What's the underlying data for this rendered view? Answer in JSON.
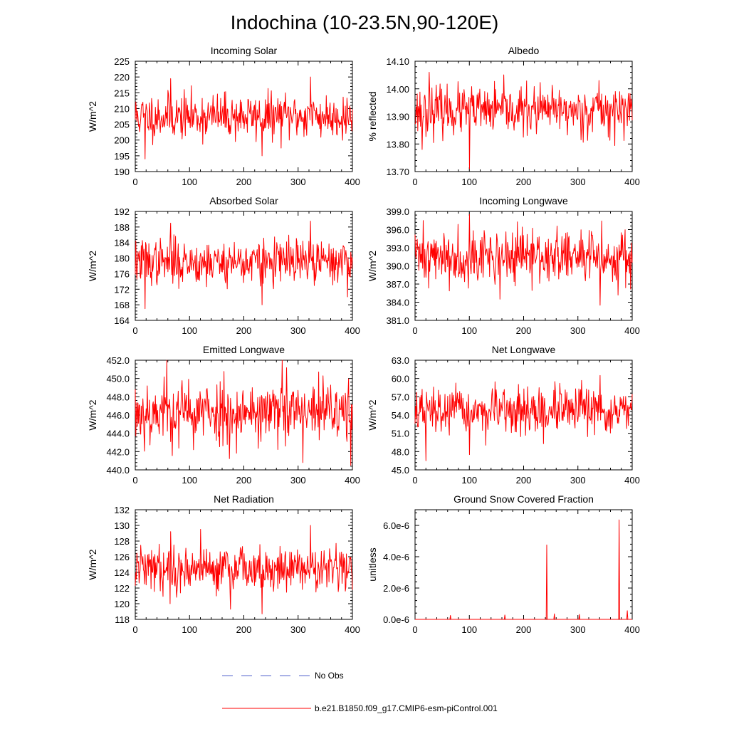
{
  "page_title": "Indochina (10-23.5N,90-120E)",
  "legend": {
    "obs_label": "No Obs",
    "model_label": "b.e21.B1850.f09_g17.CMIP6-esm-piControl.001",
    "obs_color": "#5566cc",
    "model_color": "#ff0000"
  },
  "chart_data": [
    {
      "type": "line",
      "title": "Incoming Solar",
      "ylabel": "W/m^2",
      "xlim": [
        0,
        400
      ],
      "ylim": [
        190,
        225
      ],
      "x_ticks": [
        "0",
        "100",
        "200",
        "300",
        "400"
      ],
      "y_ticks": [
        "190",
        "195",
        "200",
        "205",
        "210",
        "215",
        "220",
        "225"
      ],
      "series": [
        {
          "name": "b.e21.B1850.f09_g17.CMIP6-esm-piControl.001",
          "gen": {
            "n": 400,
            "seed": 11,
            "mean": 207.5,
            "amp": 4.2,
            "spikes": [
              [
                18,
                194
              ],
              [
                65,
                219.5
              ],
              [
                233,
                195
              ],
              [
                322,
                220
              ]
            ]
          }
        }
      ]
    },
    {
      "type": "line",
      "title": "Albedo",
      "ylabel": "% reflected",
      "xlim": [
        0,
        400
      ],
      "ylim": [
        13.7,
        14.1
      ],
      "x_ticks": [
        "0",
        "100",
        "200",
        "300",
        "400"
      ],
      "y_ticks": [
        "13.70",
        "13.80",
        "13.90",
        "14.00",
        "14.10"
      ],
      "series": [
        {
          "name": "b.e21.B1850.f09_g17.CMIP6-esm-piControl.001",
          "gen": {
            "n": 400,
            "seed": 23,
            "mean": 13.92,
            "amp": 0.05,
            "spikes": [
              [
                26,
                14.06
              ],
              [
                100,
                13.71
              ],
              [
                338,
                14.03
              ],
              [
                13,
                13.78
              ]
            ]
          }
        }
      ]
    },
    {
      "type": "line",
      "title": "Absorbed Solar",
      "ylabel": "W/m^2",
      "xlim": [
        0,
        400
      ],
      "ylim": [
        164,
        192
      ],
      "x_ticks": [
        "0",
        "100",
        "200",
        "300",
        "400"
      ],
      "y_ticks": [
        "164",
        "168",
        "172",
        "176",
        "180",
        "184",
        "188",
        "192"
      ],
      "series": [
        {
          "name": "b.e21.B1850.f09_g17.CMIP6-esm-piControl.001",
          "gen": {
            "n": 400,
            "seed": 37,
            "mean": 179.0,
            "amp": 3.4,
            "spikes": [
              [
                18,
                167
              ],
              [
                65,
                189
              ],
              [
                233,
                168
              ],
              [
                322,
                189.5
              ]
            ]
          }
        }
      ]
    },
    {
      "type": "line",
      "title": "Incoming Longwave",
      "ylabel": "W/m^2",
      "xlim": [
        0,
        400
      ],
      "ylim": [
        381,
        399
      ],
      "x_ticks": [
        "0",
        "100",
        "200",
        "300",
        "400"
      ],
      "y_ticks": [
        "381.0",
        "384.0",
        "387.0",
        "390.0",
        "393.0",
        "396.0",
        "399.0"
      ],
      "series": [
        {
          "name": "b.e21.B1850.f09_g17.CMIP6-esm-piControl.001",
          "gen": {
            "n": 400,
            "seed": 41,
            "mean": 391.5,
            "amp": 2.6,
            "spikes": [
              [
                100,
                398.5
              ],
              [
                156,
                384.5
              ],
              [
                340,
                383.5
              ],
              [
                15,
                397.5
              ]
            ]
          }
        }
      ]
    },
    {
      "type": "line",
      "title": "Emitted Longwave",
      "ylabel": "W/m^2",
      "xlim": [
        0,
        400
      ],
      "ylim": [
        440,
        452
      ],
      "x_ticks": [
        "0",
        "100",
        "200",
        "300",
        "400"
      ],
      "y_ticks": [
        "440.0",
        "442.0",
        "444.0",
        "446.0",
        "448.0",
        "450.0",
        "452.0"
      ],
      "series": [
        {
          "name": "b.e21.B1850.f09_g17.CMIP6-esm-piControl.001",
          "gen": {
            "n": 400,
            "seed": 53,
            "mean": 446.3,
            "amp": 2.1,
            "spikes": [
              [
                58,
                452
              ],
              [
                270,
                452
              ],
              [
                396,
                440.5
              ],
              [
                308,
                440.8
              ]
            ]
          }
        }
      ]
    },
    {
      "type": "line",
      "title": "Net Longwave",
      "ylabel": "W/m^2",
      "xlim": [
        0,
        400
      ],
      "ylim": [
        45,
        63
      ],
      "x_ticks": [
        "0",
        "100",
        "200",
        "300",
        "400"
      ],
      "y_ticks": [
        "45.0",
        "48.0",
        "51.0",
        "54.0",
        "57.0",
        "60.0",
        "63.0"
      ],
      "series": [
        {
          "name": "b.e21.B1850.f09_g17.CMIP6-esm-piControl.001",
          "gen": {
            "n": 400,
            "seed": 67,
            "mean": 54.5,
            "amp": 2.2,
            "spikes": [
              [
                20,
                46.5
              ],
              [
                100,
                47.5
              ],
              [
                340,
                60.5
              ],
              [
                236,
                49.3
              ]
            ]
          }
        }
      ]
    },
    {
      "type": "line",
      "title": "Net Radiation",
      "ylabel": "W/m^2",
      "xlim": [
        0,
        400
      ],
      "ylim": [
        118,
        132
      ],
      "x_ticks": [
        "0",
        "100",
        "200",
        "300",
        "400"
      ],
      "y_ticks": [
        "118",
        "120",
        "122",
        "124",
        "126",
        "128",
        "130",
        "132"
      ],
      "series": [
        {
          "name": "b.e21.B1850.f09_g17.CMIP6-esm-piControl.001",
          "gen": {
            "n": 400,
            "seed": 79,
            "mean": 124.5,
            "amp": 1.7,
            "spikes": [
              [
                65,
                129.2
              ],
              [
                120,
                129.5
              ],
              [
                233,
                118.7
              ],
              [
                322,
                130
              ],
              [
                175,
                119.3
              ]
            ]
          }
        }
      ]
    },
    {
      "type": "line",
      "title": "Ground Snow Covered Fraction",
      "ylabel": "unitless",
      "xlim": [
        0,
        400
      ],
      "ylim": [
        0,
        7e-06
      ],
      "x_ticks": [
        "0",
        "100",
        "200",
        "300",
        "400"
      ],
      "y_ticks": [
        "0.0e-6",
        "2.0e-6",
        "4.0e-6",
        "6.0e-6"
      ],
      "y_tick_values": [
        0,
        2e-06,
        4e-06,
        6e-06
      ],
      "series": [
        {
          "name": "b.e21.B1850.f09_g17.CMIP6-esm-piControl.001",
          "sparse": [
            [
              65,
              2.5e-07
            ],
            [
              165,
              2.8e-07
            ],
            [
              242,
              4.75e-06
            ],
            [
              256,
              3.5e-07
            ],
            [
              302,
              3.2e-07
            ],
            [
              375,
              6.35e-06
            ],
            [
              390,
              5.5e-07
            ]
          ]
        }
      ]
    }
  ]
}
